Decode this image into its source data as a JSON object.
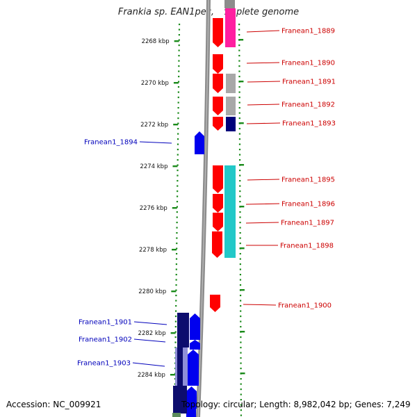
{
  "title": "Frankia sp. EAN1pec, complete genome",
  "accession": "Accession: NC_009921",
  "summary": "Topology: circular; Length: 8,982,042 bp; Genes: 7,249",
  "colors": {
    "tick": "#1a8a1a",
    "forward_gene": "#ff0000",
    "reverse_gene": "#0000ee",
    "forward_label": "#cc0000",
    "reverse_label": "#0000bb",
    "backbone": "#8c8c8c",
    "magenta": "#ff1fa0",
    "grey": "#a8a8a8",
    "navy": "#00007a",
    "cyan": "#22c8c8",
    "dark_navy": "#0d0d6e",
    "lavender": "#8f8fd8"
  },
  "axis": {
    "unit": "kbp",
    "ticks": [
      "2268 kbp",
      "2270 kbp",
      "2272 kbp",
      "2274 kbp",
      "2276 kbp",
      "2278 kbp",
      "2280 kbp",
      "2282 kbp",
      "2284 kbp"
    ]
  },
  "genes_forward": [
    {
      "label": "Franean1_1889"
    },
    {
      "label": "Franean1_1890"
    },
    {
      "label": "Franean1_1891"
    },
    {
      "label": "Franean1_1892"
    },
    {
      "label": "Franean1_1893"
    },
    {
      "label": "Franean1_1895"
    },
    {
      "label": "Franean1_1896"
    },
    {
      "label": "Franean1_1897"
    },
    {
      "label": "Franean1_1898"
    },
    {
      "label": "Franean1_1900"
    }
  ],
  "genes_reverse": [
    {
      "label": "Franean1_1894"
    },
    {
      "label": "Franean1_1901"
    },
    {
      "label": "Franean1_1902"
    },
    {
      "label": "Franean1_1903"
    }
  ]
}
